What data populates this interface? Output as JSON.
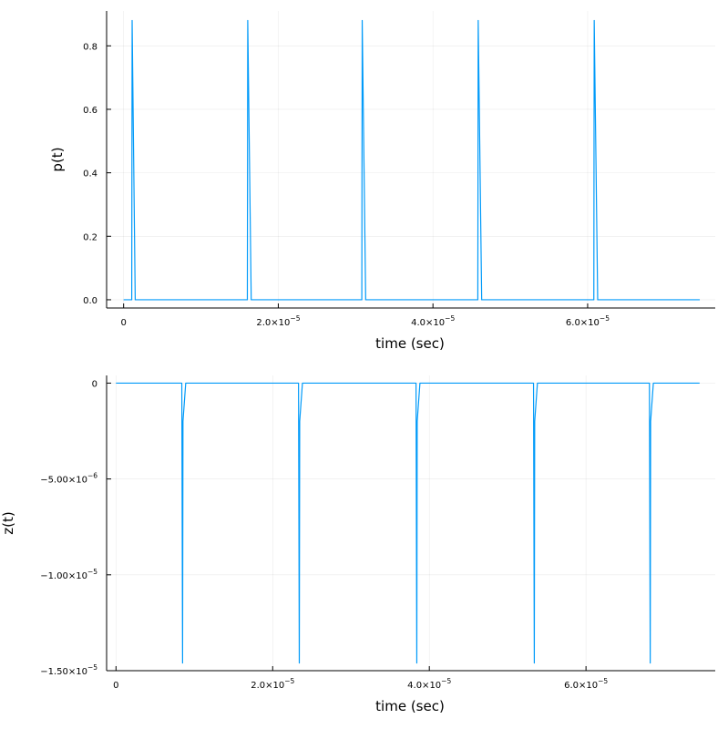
{
  "chart_data": [
    {
      "type": "line",
      "xlabel": "time (sec)",
      "ylabel": "p(t)",
      "xlim": [
        -2.2e-06,
        7.65e-05
      ],
      "ylim": [
        -0.026,
        0.91
      ],
      "xticks": [
        0,
        2e-05,
        4e-05,
        6e-05
      ],
      "xtick_labels": [
        "0",
        "2.0×10⁻⁵",
        "4.0×10⁻⁵",
        "6.0×10⁻⁵"
      ],
      "yticks": [
        0,
        0.2,
        0.4,
        0.6,
        0.8
      ],
      "ytick_labels": [
        "0.0",
        "0.2",
        "0.4",
        "0.6",
        "0.8"
      ],
      "grid": true,
      "legend": "none",
      "color": "#009af9",
      "series": [
        {
          "x": [
            0,
            1.05e-06,
            1.1e-06,
            1.5e-06,
            1.6e-05,
            1.605e-05,
            1.65e-05,
            3.08e-05,
            3.085e-05,
            3.13e-05,
            4.58e-05,
            4.585e-05,
            4.63e-05,
            6.08e-05,
            6.085e-05,
            6.13e-05,
            7.45e-05
          ],
          "y": [
            0,
            0,
            0.88,
            0,
            0,
            0.88,
            0,
            0,
            0.88,
            0,
            0,
            0.88,
            0,
            0,
            0.88,
            0,
            0
          ]
        }
      ]
    },
    {
      "type": "line",
      "xlabel": "time (sec)",
      "ylabel": "z(t)",
      "xlim": [
        -1.2e-06,
        7.65e-05
      ],
      "ylim": [
        -1.5e-05,
        4e-07
      ],
      "xticks": [
        0,
        2e-05,
        4e-05,
        6e-05
      ],
      "xtick_labels": [
        "0",
        "2.0×10⁻⁵",
        "4.0×10⁻⁵",
        "6.0×10⁻⁵"
      ],
      "yticks": [
        0,
        -5e-06,
        -1e-05,
        -1.5e-05
      ],
      "ytick_labels": [
        "0",
        "−5.00×10⁻⁶",
        "−1.00×10⁻⁵",
        "−1.50×10⁻⁵"
      ],
      "grid": true,
      "legend": "none",
      "color": "#009af9",
      "series": [
        {
          "x": [
            0,
            8.4e-06,
            8.5e-06,
            8.55e-06,
            8.9e-06,
            2.33e-05,
            2.34e-05,
            2.345e-05,
            2.38e-05,
            3.83e-05,
            3.84e-05,
            3.845e-05,
            3.88e-05,
            5.33e-05,
            5.34e-05,
            5.345e-05,
            5.38e-05,
            6.81e-05,
            6.82e-05,
            6.825e-05,
            6.86e-05,
            7.45e-05
          ],
          "y": [
            0,
            0,
            -1.46e-05,
            -2e-06,
            0,
            0,
            -1.46e-05,
            -2e-06,
            0,
            0,
            -1.46e-05,
            -2e-06,
            0,
            0,
            -1.46e-05,
            -2e-06,
            0,
            0,
            -1.46e-05,
            -2e-06,
            0,
            0
          ]
        }
      ]
    }
  ]
}
